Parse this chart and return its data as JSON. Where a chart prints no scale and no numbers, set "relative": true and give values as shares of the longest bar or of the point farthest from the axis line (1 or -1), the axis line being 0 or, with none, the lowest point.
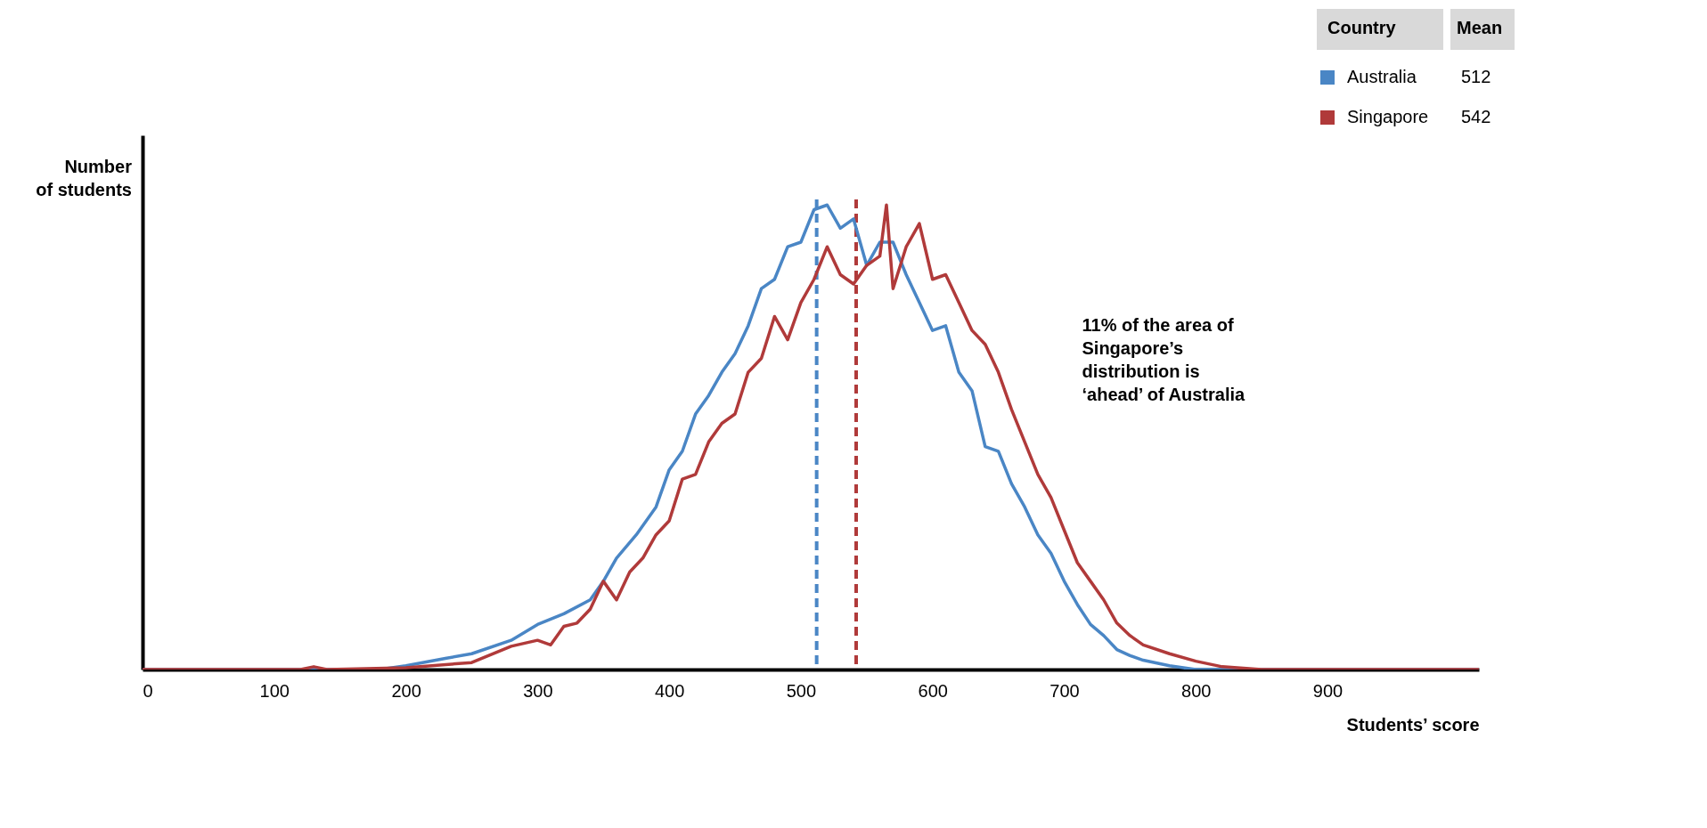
{
  "chart_data": {
    "type": "line",
    "relative": true,
    "xlabel": "Students’ score",
    "ylabel": "Number of students",
    "legend_title": "Country",
    "legend": "top right",
    "xlim": [
      0,
      1015
    ],
    "xticks": [
      0,
      100,
      200,
      300,
      400,
      500,
      600,
      700,
      800,
      900
    ],
    "grid": false,
    "series": [
      {
        "name": "Australia",
        "color": "#4a86c5",
        "x": [
          0,
          180,
          200,
          230,
          250,
          280,
          300,
          320,
          340,
          350,
          360,
          375,
          390,
          400,
          410,
          420,
          430,
          440,
          450,
          460,
          470,
          480,
          490,
          500,
          510,
          520,
          530,
          540,
          550,
          560,
          570,
          580,
          590,
          600,
          610,
          620,
          630,
          640,
          650,
          660,
          670,
          680,
          690,
          700,
          710,
          720,
          730,
          740,
          750,
          760,
          780,
          800,
          1015
        ],
        "values": [
          0,
          0,
          0.008,
          0.024,
          0.034,
          0.063,
          0.097,
          0.12,
          0.15,
          0.19,
          0.24,
          0.29,
          0.35,
          0.43,
          0.47,
          0.55,
          0.59,
          0.64,
          0.68,
          0.74,
          0.82,
          0.84,
          0.91,
          0.92,
          0.99,
          1.0,
          0.95,
          0.97,
          0.87,
          0.92,
          0.92,
          0.85,
          0.79,
          0.73,
          0.74,
          0.64,
          0.6,
          0.48,
          0.47,
          0.4,
          0.35,
          0.29,
          0.25,
          0.19,
          0.14,
          0.097,
          0.073,
          0.043,
          0.03,
          0.02,
          0.008,
          0,
          0
        ]
      },
      {
        "name": "Singapore",
        "color": "#b03a3a",
        "x": [
          0,
          120,
          130,
          140,
          200,
          250,
          280,
          300,
          310,
          320,
          330,
          340,
          350,
          360,
          370,
          380,
          390,
          400,
          410,
          420,
          430,
          440,
          450,
          460,
          470,
          480,
          490,
          500,
          510,
          520,
          530,
          540,
          550,
          560,
          565,
          570,
          580,
          590,
          600,
          610,
          620,
          630,
          640,
          650,
          660,
          670,
          680,
          690,
          700,
          710,
          720,
          730,
          740,
          750,
          760,
          780,
          800,
          820,
          850,
          1015
        ],
        "values": [
          0,
          0,
          0.006,
          0,
          0.004,
          0.015,
          0.05,
          0.063,
          0.053,
          0.093,
          0.1,
          0.13,
          0.19,
          0.15,
          0.21,
          0.24,
          0.29,
          0.32,
          0.41,
          0.42,
          0.49,
          0.53,
          0.55,
          0.64,
          0.67,
          0.76,
          0.71,
          0.79,
          0.84,
          0.91,
          0.85,
          0.83,
          0.87,
          0.89,
          1.0,
          0.82,
          0.91,
          0.96,
          0.84,
          0.85,
          0.79,
          0.73,
          0.7,
          0.64,
          0.56,
          0.49,
          0.42,
          0.37,
          0.3,
          0.23,
          0.19,
          0.15,
          0.1,
          0.073,
          0.053,
          0.034,
          0.018,
          0.006,
          0,
          0
        ]
      }
    ],
    "ref_lines": [
      {
        "axis": "x",
        "value": 512,
        "color": "#4a86c5",
        "line_style": "dashed"
      },
      {
        "axis": "x",
        "value": 542,
        "color": "#b03a3a",
        "line_style": "dashed"
      }
    ],
    "annotations": [
      "Mean",
      "512",
      "542",
      "11% of the area of Singapore’s distribution is ‘ahead’ of Australia"
    ]
  }
}
